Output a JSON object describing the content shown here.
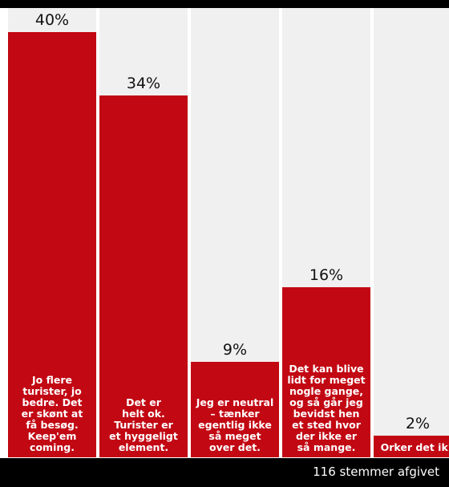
{
  "colors": {
    "bar": "#c20813",
    "column_background": "#f1f0f0",
    "band": "#000000",
    "text_light": "#ffffff",
    "text_dark": "#111111"
  },
  "chart_data": {
    "type": "bar",
    "categories": [
      "Jo flere\nturister, jo\nbedre. Det\ner skønt at\nfå besøg.\nKeep'em\ncoming.",
      "Det er\nhelt ok.\nTurister er\net hyggeligt\nelement.",
      "Jeg er neutral\n– tænker\negentlig ikke\nså meget\nover det.",
      "Det kan blive\nlidt for meget\nnogle gange,\nog så går jeg\nbevidst hen\net sted hvor\nder ikke er\nså mange.",
      "Orker det ik'."
    ],
    "values": [
      40,
      34,
      9,
      16,
      2
    ],
    "value_labels": [
      "40%",
      "34%",
      "9%",
      "16%",
      "2%"
    ],
    "ylim": [
      0,
      40
    ],
    "grid": false,
    "legend": "none"
  },
  "footer": {
    "votes_text": "116 stemmer afgivet"
  }
}
